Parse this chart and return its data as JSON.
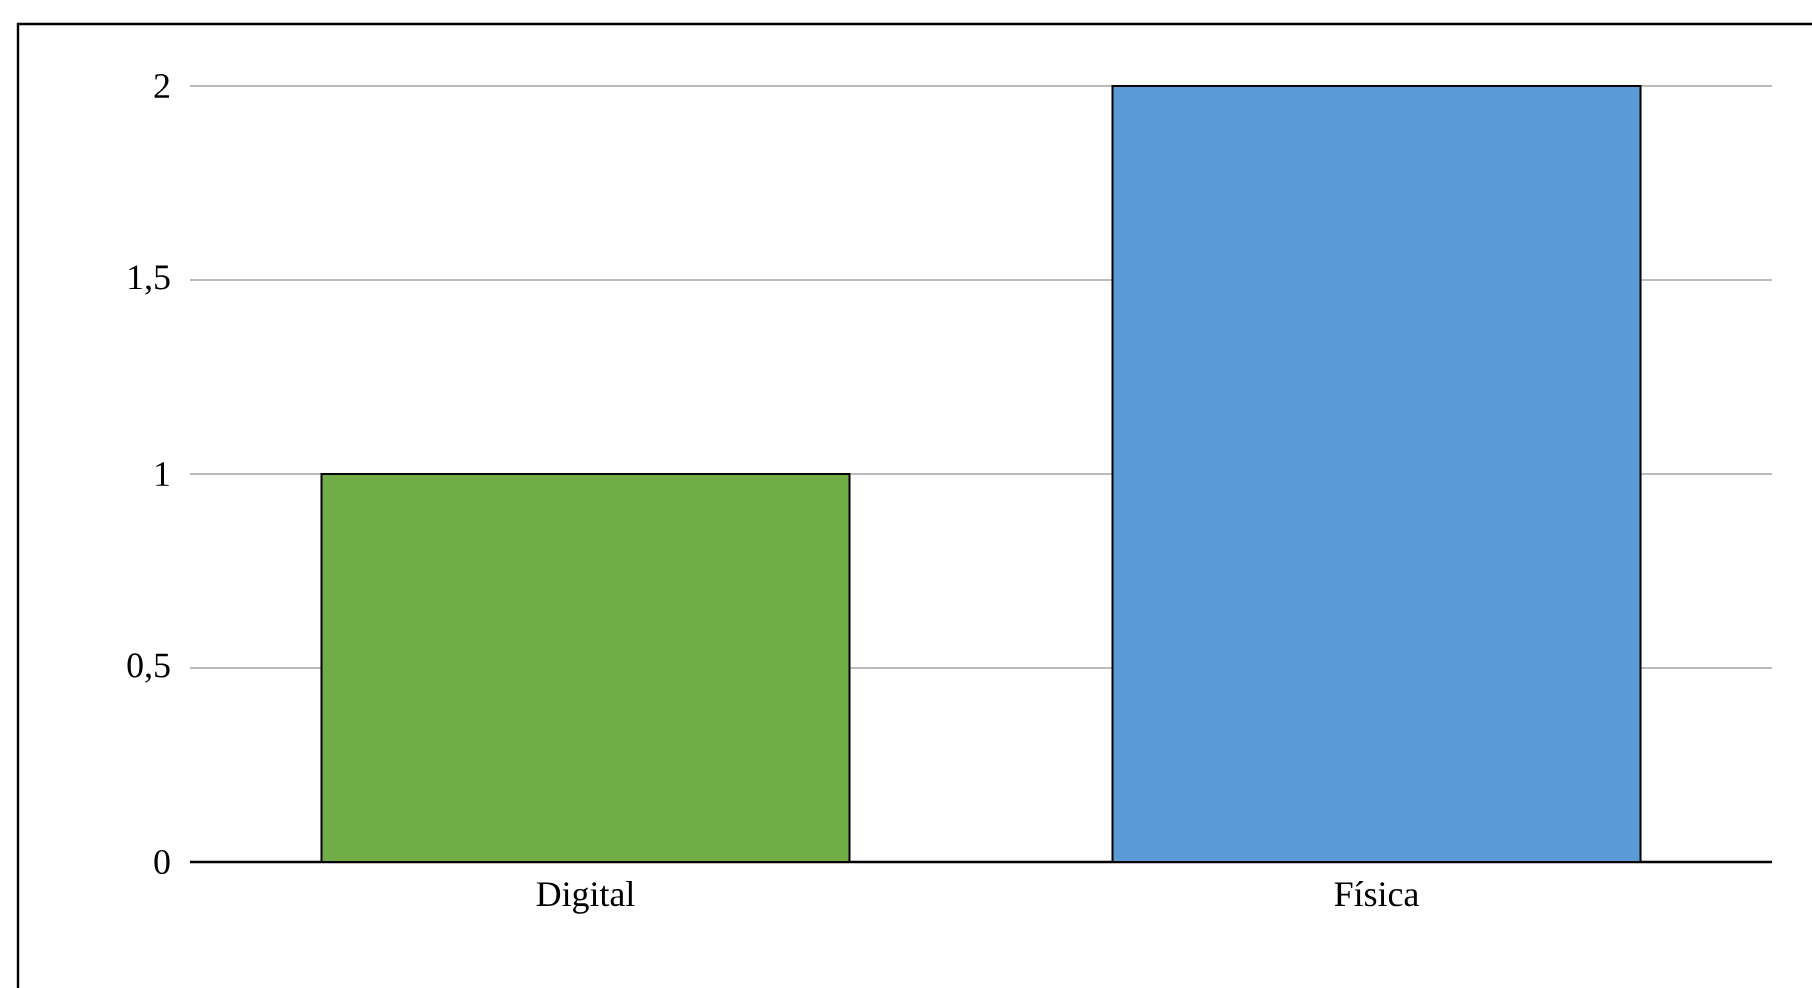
{
  "chart_data": {
    "type": "bar",
    "categories": [
      "Digital",
      "Física"
    ],
    "values": [
      1,
      2
    ],
    "colors": [
      "#70ad47",
      "#5b9bd5"
    ],
    "ylim": [
      0,
      2
    ],
    "yticks": [
      0,
      {
        "value": 0.5,
        "label": "0,5"
      },
      1,
      {
        "value": 1.5,
        "label": "1,5"
      },
      2
    ],
    "grid": "y"
  }
}
